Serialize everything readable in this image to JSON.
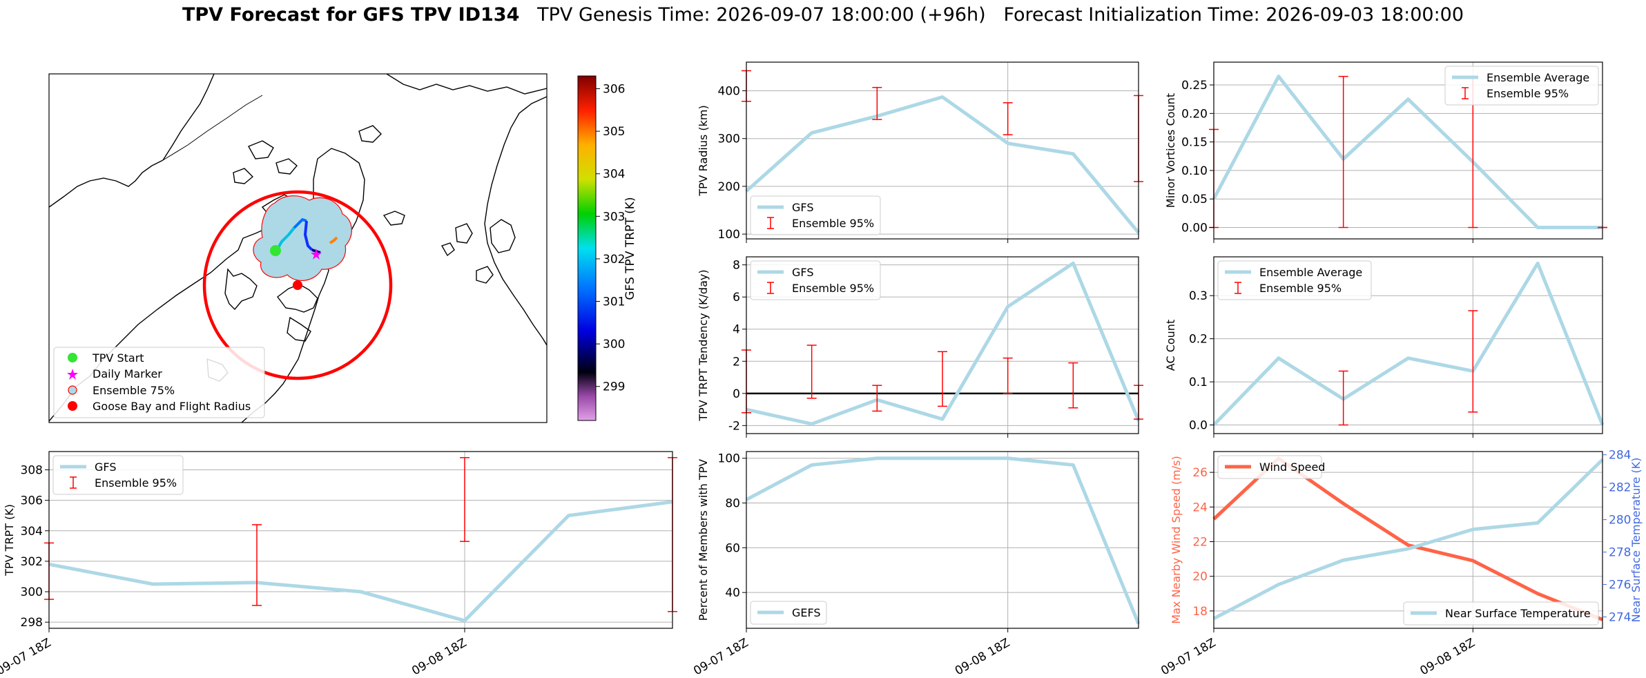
{
  "title": {
    "bold": "TPV Forecast for GFS TPV ID134",
    "genesis": "TPV Genesis Time: 2026-09-07 18:00:00 (+96h)",
    "init": "Forecast Initialization Time: 2026-09-03 18:00:00"
  },
  "colors": {
    "gfs_line": "#add8e6",
    "error_bar": "#ff0000",
    "wind_line": "#ff6347",
    "temp_axis": "#4169e1",
    "zero_line": "#000000"
  },
  "map": {
    "colorbar_label": "GFS TPV TRPT (K)",
    "colorbar_ticks": [
      "299",
      "300",
      "301",
      "302",
      "303",
      "304",
      "305",
      "306"
    ],
    "colorbar_range": [
      298.2,
      306.3
    ],
    "legend": [
      {
        "label": "TPV Start",
        "marker": "green-circle"
      },
      {
        "label": "Daily Marker",
        "marker": "magenta-star"
      },
      {
        "label": "Ensemble 75%",
        "marker": "lightblue-red-edge-circle"
      },
      {
        "label": "Goose Bay and Flight Radius",
        "marker": "red-circle"
      }
    ]
  },
  "x_ticks": [
    "09-07 18Z",
    "09-08 18Z"
  ],
  "chart_data": [
    {
      "id": "radius",
      "type": "line",
      "ylabel": "TPV Radius (km)",
      "x": [
        0,
        1,
        2,
        3,
        4,
        5,
        6
      ],
      "series": [
        {
          "name": "GFS",
          "values": [
            190,
            312,
            347,
            387,
            290,
            268,
            103
          ]
        }
      ],
      "error_bars": {
        "name": "Ensemble 95%",
        "x": [
          0,
          2,
          4,
          6
        ],
        "low": [
          378,
          340,
          308,
          210
        ],
        "high": [
          442,
          407,
          375,
          390
        ]
      },
      "ylim": [
        90,
        460
      ],
      "yticks": [
        100,
        200,
        300,
        400
      ],
      "legend": "lower-left"
    },
    {
      "id": "minor",
      "type": "line",
      "ylabel": "Minor Vortices Count",
      "x": [
        0,
        1,
        2,
        3,
        4,
        5,
        6
      ],
      "series": [
        {
          "name": "Ensemble Average",
          "values": [
            0.05,
            0.265,
            0.12,
            0.225,
            0.115,
            0.0,
            0.0
          ]
        }
      ],
      "error_bars": {
        "name": "Ensemble 95%",
        "x": [
          0,
          2,
          4,
          6
        ],
        "low": [
          0.0,
          0.0,
          0.0,
          0.0
        ],
        "high": [
          0.172,
          0.265,
          0.265,
          0.0
        ]
      },
      "ylim": [
        -0.02,
        0.29
      ],
      "yticks": [
        0.0,
        0.05,
        0.1,
        0.15,
        0.2,
        0.25
      ],
      "ytick_labels": [
        "0.00",
        "0.05",
        "0.10",
        "0.15",
        "0.20",
        "0.25"
      ],
      "legend": "upper-right"
    },
    {
      "id": "tendency",
      "type": "line",
      "ylabel": "TPV TRPT Tendency (K/day)",
      "x": [
        0,
        1,
        2,
        3,
        4,
        5,
        6
      ],
      "series": [
        {
          "name": "GFS",
          "values": [
            -1.0,
            -1.9,
            -0.4,
            -1.6,
            5.4,
            8.1,
            -1.7
          ]
        }
      ],
      "error_bars": {
        "name": "Ensemble 95%",
        "x": [
          0,
          1,
          2,
          3,
          4,
          5,
          6
        ],
        "low": [
          -1.2,
          -0.3,
          -1.1,
          -0.8,
          0.0,
          -0.9,
          -1.6
        ],
        "high": [
          2.7,
          3.0,
          0.5,
          2.6,
          2.2,
          1.9,
          0.5
        ]
      },
      "zero_line": true,
      "ylim": [
        -2.5,
        8.5
      ],
      "yticks": [
        -2,
        0,
        2,
        4,
        6,
        8
      ],
      "legend": "upper-left"
    },
    {
      "id": "ac",
      "type": "line",
      "ylabel": "AC Count",
      "x": [
        0,
        1,
        2,
        3,
        4,
        5,
        6
      ],
      "series": [
        {
          "name": "Ensemble Average",
          "values": [
            0.0,
            0.155,
            0.06,
            0.155,
            0.125,
            0.375,
            0.0
          ]
        }
      ],
      "error_bars": {
        "name": "Ensemble 95%",
        "x": [
          2,
          4
        ],
        "low": [
          0.0,
          0.03
        ],
        "high": [
          0.125,
          0.265
        ]
      },
      "ylim": [
        -0.02,
        0.39
      ],
      "yticks": [
        0.0,
        0.1,
        0.2,
        0.3
      ],
      "ytick_labels": [
        "0.0",
        "0.1",
        "0.2",
        "0.3"
      ],
      "legend": "upper-left"
    },
    {
      "id": "trpt",
      "type": "line",
      "ylabel": "TPV TRPT (K)",
      "x": [
        0,
        1,
        2,
        3,
        4,
        5,
        6
      ],
      "series": [
        {
          "name": "GFS",
          "values": [
            301.8,
            300.5,
            300.6,
            300.0,
            298.1,
            305.0,
            305.9
          ]
        }
      ],
      "error_bars": {
        "name": "Ensemble 95%",
        "x": [
          0,
          2,
          4,
          6
        ],
        "low": [
          299.5,
          299.1,
          303.3,
          298.7
        ],
        "high": [
          303.2,
          304.4,
          308.8,
          308.8
        ]
      },
      "ylim": [
        297.6,
        309.2
      ],
      "yticks": [
        298,
        300,
        302,
        304,
        306,
        308
      ],
      "legend": "upper-left"
    },
    {
      "id": "percent",
      "type": "line",
      "ylabel": "Percent of Members with TPV",
      "x": [
        0,
        1,
        2,
        3,
        4,
        5,
        6
      ],
      "series": [
        {
          "name": "GEFS",
          "values": [
            81.5,
            97.0,
            100.0,
            100.0,
            100.0,
            97.0,
            26.0
          ]
        }
      ],
      "ylim": [
        24,
        103
      ],
      "yticks": [
        40,
        60,
        80,
        100
      ],
      "legend": "lower-left"
    },
    {
      "id": "wind",
      "type": "line",
      "ylabel": "Max Nearby Wind Speed (m/s)",
      "ylabel2": "Near Surface Temperature (K)",
      "x": [
        0,
        1,
        2,
        3,
        4,
        5,
        6
      ],
      "series": [
        {
          "name": "Wind Speed",
          "axis": "left",
          "values": [
            23.3,
            26.8,
            24.2,
            21.8,
            20.9,
            19.0,
            17.5
          ]
        },
        {
          "name": "Near Surface Temperature",
          "axis": "right",
          "values": [
            273.9,
            276.0,
            277.5,
            278.2,
            279.4,
            279.8,
            283.7
          ]
        }
      ],
      "ylim": [
        17.0,
        27.2
      ],
      "yticks": [
        18,
        20,
        22,
        24,
        26
      ],
      "ylim2": [
        273.3,
        284.2
      ],
      "yticks2": [
        274,
        276,
        278,
        280,
        282,
        284
      ],
      "legend": "upper-left / lower-right"
    }
  ]
}
